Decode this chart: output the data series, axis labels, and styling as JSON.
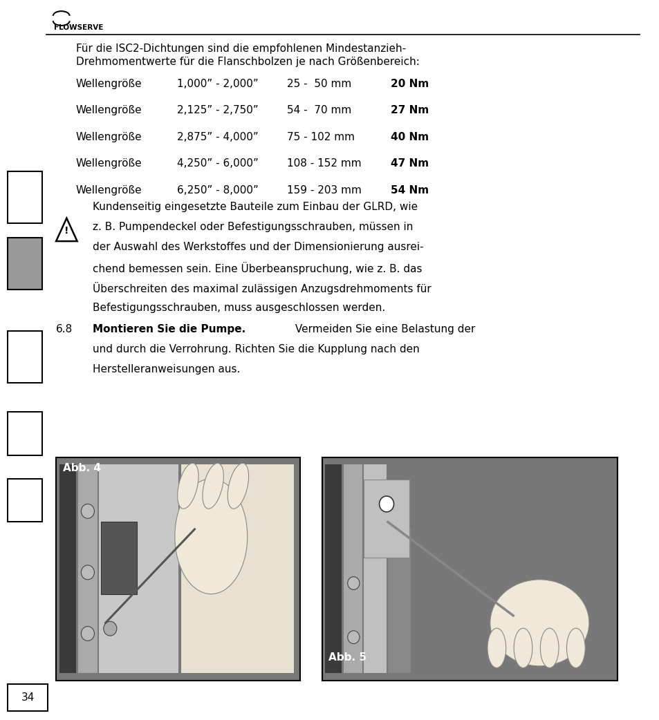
{
  "page_number": "34",
  "bg_color": "#ffffff",
  "text_color": "#000000",
  "logo_text": "FLOWSERVE",
  "intro_text_line1": "Für die ISC2-Dichtungen sind die empfohlenen Mindestanzieh-",
  "intro_text_line2": "Drehmomentwerte für die Flanschbolzen je nach Größenbereich:",
  "table_rows": [
    [
      "Wellengröße",
      "1,000” - 2,000”",
      "25 -  50 mm",
      "20 Nm"
    ],
    [
      "Wellengröße",
      "2,125” - 2,750”",
      "54 -  70 mm",
      "27 Nm"
    ],
    [
      "Wellengröße",
      "2,875” - 4,000”",
      "75 - 102 mm",
      "40 Nm"
    ],
    [
      "Wellengröße",
      "4,250” - 6,000”",
      "108 - 152 mm",
      "47 Nm"
    ],
    [
      "Wellengröße",
      "6,250” - 8,000”",
      "159 - 203 mm",
      "54 Nm"
    ]
  ],
  "warning_text": [
    "Kundenseitig eingesetzte Bauteile zum Einbau der GLRD, wie",
    "z. B. Pumpendeckel oder Befestigungsschrauben, müssen in",
    "der Auswahl des Werkstoffes und der Dimensionierung ausrei-",
    "chend bemessen sein. Eine Überbeanspruchung, wie z. B. das",
    "Überschreiten des maximal zulässigen Anzugsdrehmoments für",
    "Befestigungsschrauben, muss ausgeschlossen werden."
  ],
  "section_number": "6.8",
  "section_bold": "Montieren Sie die Pumpe.",
  "section_line2": "und durch die Verrohrung. Richten Sie die Kupplung nach den",
  "section_line1_cont": " Vermeiden Sie eine Belastung der",
  "section_line3": "Herstelleranweisungen aus.",
  "fig4_label": "Abb. 4",
  "fig5_label": "Abb. 5"
}
